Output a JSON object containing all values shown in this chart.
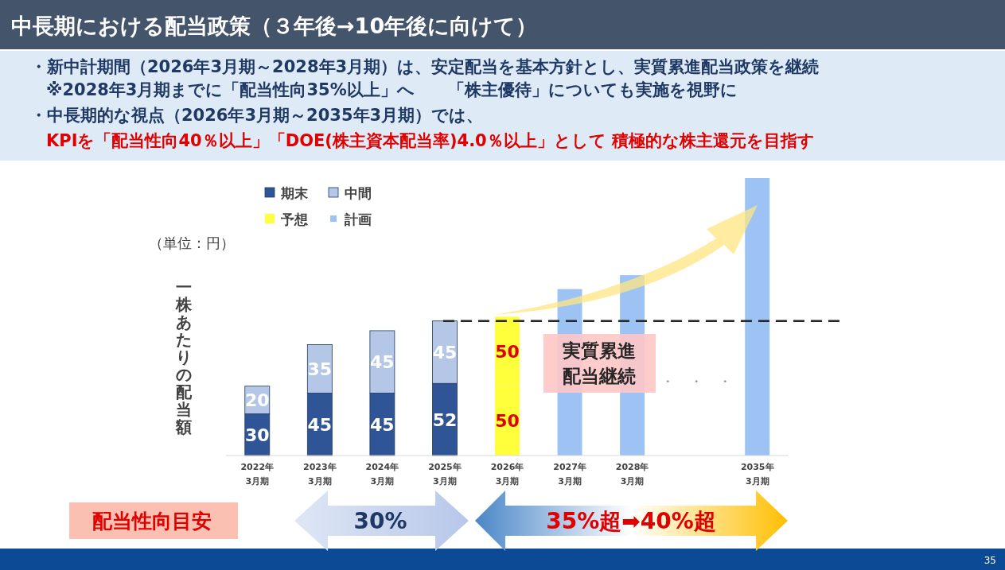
{
  "chart_data": {
    "type": "bar",
    "stacked": true,
    "title": "中長期における配当政策（３年後→10年後に向けて）",
    "ylabel": "一株あたりの配当額",
    "categories": [
      "2022年\n3月期",
      "2023年\n3月期",
      "2024年\n3月期",
      "2025年\n3月期",
      "2026年\n3月期",
      "2027年\n3月期",
      "2028年\n3月期",
      null,
      "2035年\n3月期"
    ],
    "ylim": [
      0,
      200
    ],
    "series": [
      {
        "name": "期末",
        "color": "#2f5597",
        "values": [
          30,
          45,
          45,
          52,
          null,
          null,
          null,
          null,
          null
        ],
        "value_labels": [
          "30",
          "45",
          "45",
          "52",
          null,
          null,
          null,
          null,
          null
        ]
      },
      {
        "name": "中間",
        "color": "#b4c7e7",
        "values": [
          20,
          35,
          45,
          45,
          null,
          null,
          null,
          null,
          null
        ],
        "value_labels": [
          "20",
          "35",
          "45",
          "45",
          null,
          null,
          null,
          null,
          null
        ]
      },
      {
        "name": "予想",
        "color": "#ffff3c",
        "values": [
          null,
          null,
          null,
          null,
          50,
          null,
          null,
          null,
          null
        ],
        "value_labels": [
          null,
          null,
          null,
          null,
          "50",
          null,
          null,
          null,
          null
        ]
      },
      {
        "color": "#ffff3c",
        "values": [
          null,
          null,
          null,
          null,
          50,
          null,
          null,
          null,
          null
        ],
        "value_labels": [
          null,
          null,
          null,
          null,
          "50",
          null,
          null,
          null,
          null
        ]
      },
      {
        "name": "計画",
        "color": "#9dc3f5",
        "values": [
          null,
          null,
          null,
          null,
          null,
          120,
          130,
          null,
          200
        ]
      }
    ],
    "ref_lines": [
      {
        "axis": "y",
        "value": 97,
        "color": "#262626",
        "line_style": "dashed"
      }
    ],
    "legend": "top left",
    "annotations": [
      "・新中計期間（2026年3月期～2028年3月期）は、安定配当を基本方針とし、実質累進配当政策を継続",
      "※2028年3月期までに「配当性向35%以上」へ　　「株主優待」についても実施を視野に",
      "・中長期的な視点（2026年3月期～2035年3月期）では、",
      "KPIを「配当性向40％以上」「DOE(株主資本配当率)4.0％以上」として 積極的な株主還元を目指す",
      "（単位：円）",
      "実質累進",
      "配当継続",
      "・　・　・",
      "配当性向目安",
      "30%",
      "35%超➡40%超",
      "35"
    ]
  }
}
